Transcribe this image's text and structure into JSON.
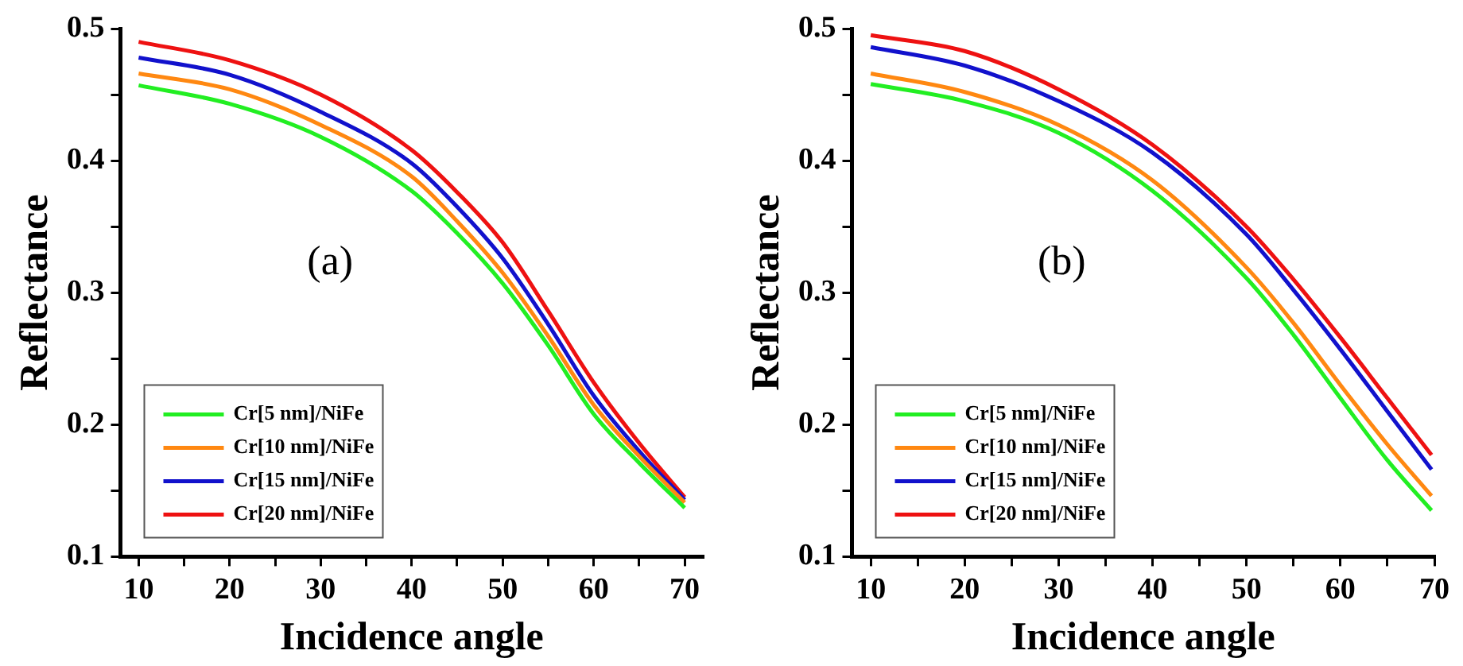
{
  "chart_data": [
    {
      "type": "line",
      "xlabel": "Incidence angle",
      "ylabel": "Reflectance",
      "annotations": [
        "(a)"
      ],
      "x": [
        10,
        20,
        30,
        40,
        45,
        50,
        55,
        60,
        65,
        70
      ],
      "xlim": [
        8,
        72
      ],
      "xticks": [
        10,
        {
          "value": 15,
          "label": null
        },
        20,
        {
          "value": 25,
          "label": null
        },
        30,
        {
          "value": 35,
          "label": null
        },
        40,
        {
          "value": 45,
          "label": null
        },
        50,
        {
          "value": 55,
          "label": null
        },
        60,
        {
          "value": 65,
          "label": null
        },
        70
      ],
      "ylim": [
        0.1,
        0.5
      ],
      "yticks": [
        0.1,
        {
          "value": 0.15,
          "label": null
        },
        0.2,
        {
          "value": 0.25,
          "label": null
        },
        0.3,
        {
          "value": 0.35,
          "label": null
        },
        0.4,
        {
          "value": 0.45,
          "label": null
        },
        0.5
      ],
      "legend": "bottom left",
      "line_style": "solid",
      "marker": "none",
      "grid": false,
      "series": [
        {
          "name": "Cr[5 nm]/NiFe",
          "color": "#22ee22",
          "values": [
            0.457,
            0.443,
            0.418,
            0.377,
            0.345,
            0.307,
            0.26,
            0.208,
            0.171,
            0.137
          ]
        },
        {
          "name": "Cr[10 nm]/NiFe",
          "color": "#ff8811",
          "values": [
            0.466,
            0.454,
            0.427,
            0.388,
            0.354,
            0.315,
            0.267,
            0.215,
            0.176,
            0.141
          ]
        },
        {
          "name": "Cr[15 nm]/NiFe",
          "color": "#1111cc",
          "values": [
            0.478,
            0.465,
            0.437,
            0.398,
            0.365,
            0.326,
            0.276,
            0.222,
            0.18,
            0.143
          ]
        },
        {
          "name": "Cr[20 nm]/NiFe",
          "color": "#ee1111",
          "values": [
            0.49,
            0.476,
            0.45,
            0.408,
            0.376,
            0.338,
            0.286,
            0.232,
            0.186,
            0.145
          ]
        }
      ]
    },
    {
      "type": "line",
      "xlabel": "Incidence angle",
      "ylabel": "Reflectance",
      "annotations": [
        "(b)"
      ],
      "x": [
        10,
        20,
        30,
        40,
        50,
        55,
        60,
        65,
        69.7
      ],
      "xlim": [
        8,
        70
      ],
      "xticks": [
        10,
        {
          "value": 15,
          "label": null
        },
        20,
        {
          "value": 25,
          "label": null
        },
        30,
        {
          "value": 35,
          "label": null
        },
        40,
        {
          "value": 45,
          "label": null
        },
        50,
        {
          "value": 55,
          "label": null
        },
        60,
        {
          "value": 65,
          "label": null
        },
        70
      ],
      "ylim": [
        0.1,
        0.5
      ],
      "yticks": [
        0.1,
        {
          "value": 0.15,
          "label": null
        },
        0.2,
        {
          "value": 0.25,
          "label": null
        },
        0.3,
        {
          "value": 0.35,
          "label": null
        },
        0.4,
        {
          "value": 0.45,
          "label": null
        },
        0.5
      ],
      "legend": "bottom left",
      "line_style": "solid",
      "marker": "none",
      "grid": false,
      "series": [
        {
          "name": "Cr[5 nm]/NiFe",
          "color": "#22ee22",
          "values": [
            0.458,
            0.445,
            0.421,
            0.377,
            0.311,
            0.268,
            0.22,
            0.173,
            0.135
          ]
        },
        {
          "name": "Cr[10 nm]/NiFe",
          "color": "#ff8811",
          "values": [
            0.466,
            0.452,
            0.427,
            0.385,
            0.319,
            0.277,
            0.23,
            0.185,
            0.146
          ]
        },
        {
          "name": "Cr[15 nm]/NiFe",
          "color": "#1111cc",
          "values": [
            0.486,
            0.472,
            0.445,
            0.406,
            0.344,
            0.302,
            0.257,
            0.21,
            0.166
          ]
        },
        {
          "name": "Cr[20 nm]/NiFe",
          "color": "#ee1111",
          "values": [
            0.495,
            0.483,
            0.454,
            0.412,
            0.35,
            0.31,
            0.266,
            0.22,
            0.177
          ]
        }
      ]
    }
  ]
}
